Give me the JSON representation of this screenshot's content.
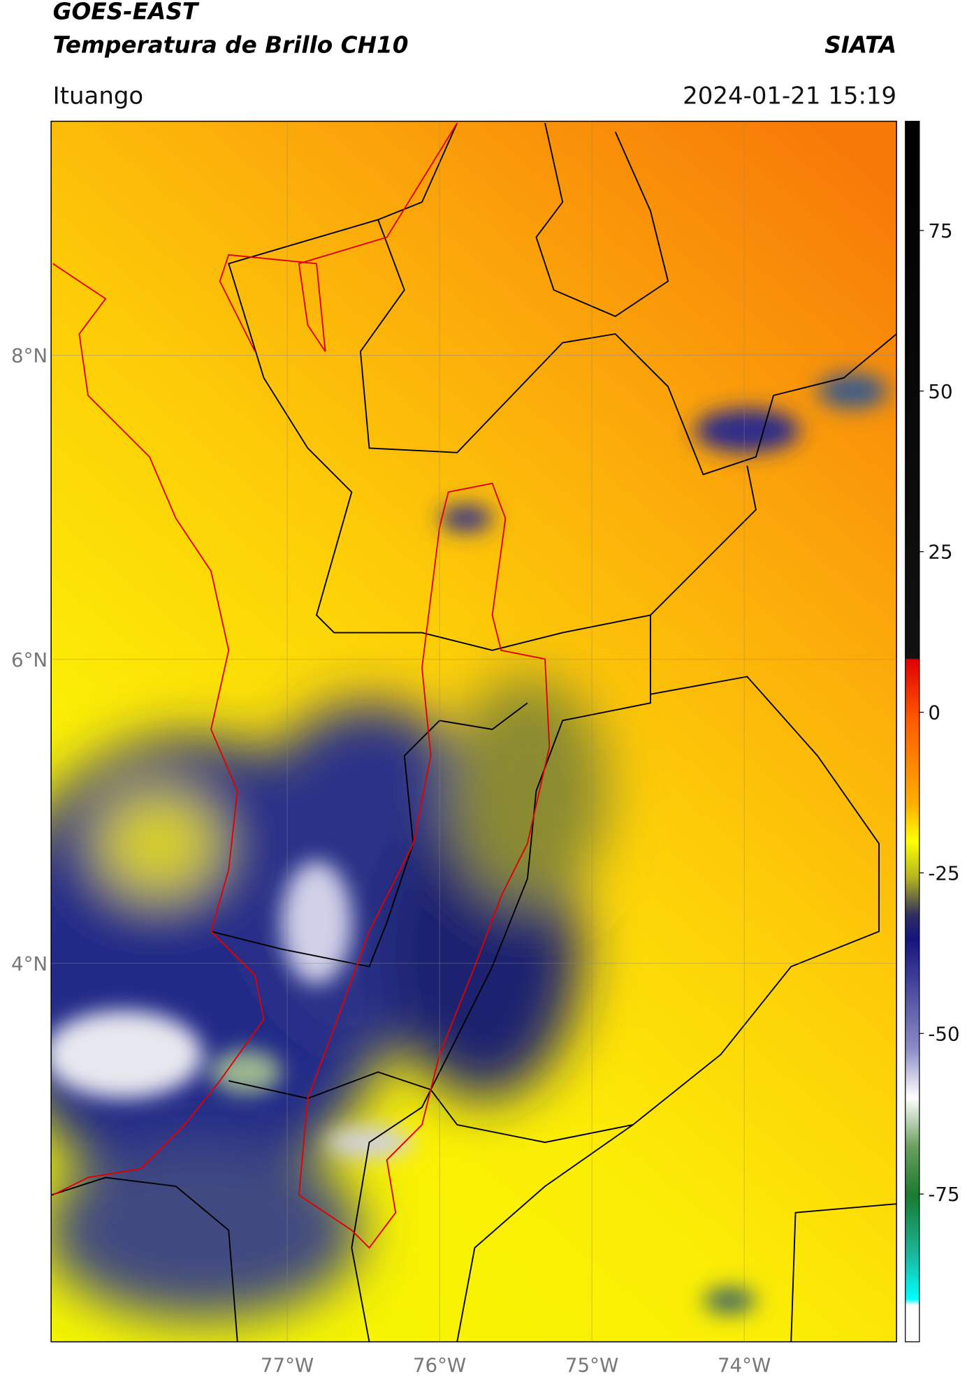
{
  "header": {
    "title": "GOES-EAST",
    "subtitle": "Temperatura de Brillo CH10",
    "brand": "SIATA",
    "location": "Ituango",
    "datetime": "2024-01-21 15:19"
  },
  "map": {
    "lonlim": [
      -78.55,
      -73.0
    ],
    "latlim": [
      1.51,
      9.54
    ],
    "lon_ticks": [
      {
        "value": -77,
        "label": "77°W"
      },
      {
        "value": -76,
        "label": "76°W"
      },
      {
        "value": -75,
        "label": "75°W"
      },
      {
        "value": -74,
        "label": "74°W"
      }
    ],
    "lat_ticks": [
      {
        "value": 8,
        "label": "8°N"
      },
      {
        "value": 6,
        "label": "6°N"
      },
      {
        "value": 4,
        "label": "4°N"
      }
    ],
    "grid": true
  },
  "colorbar": {
    "lim": [
      -98,
      92
    ],
    "ticks": [
      75,
      50,
      25,
      0,
      -25,
      -50,
      -75
    ]
  }
}
